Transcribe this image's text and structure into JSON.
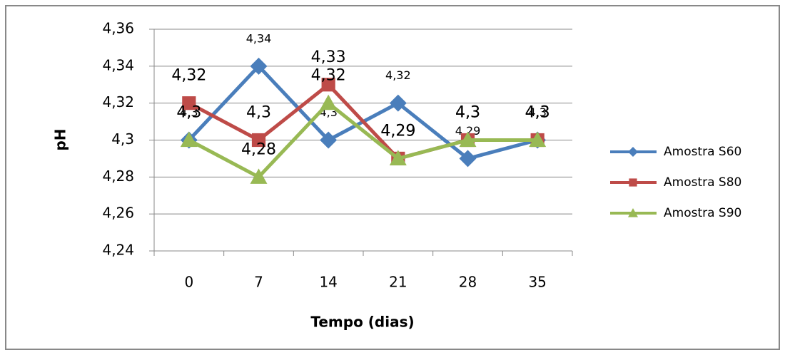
{
  "chart_data": {
    "type": "line",
    "x_label": "Tempo (dias)",
    "y_label": "pH",
    "categories": [
      "0",
      "7",
      "14",
      "21",
      "28",
      "35"
    ],
    "ylim": [
      4.24,
      4.36
    ],
    "yticks": [
      {
        "value": 4.24,
        "label": "4,24"
      },
      {
        "value": 4.26,
        "label": "4,26"
      },
      {
        "value": 4.28,
        "label": "4,28"
      },
      {
        "value": 4.3,
        "label": "4,3"
      },
      {
        "value": 4.32,
        "label": "4,32"
      },
      {
        "value": 4.34,
        "label": "4,34"
      },
      {
        "value": 4.36,
        "label": "4,36"
      }
    ],
    "grid": true,
    "legend": "right",
    "series": [
      {
        "name": "Amostra S60",
        "color": "#4a7ebb",
        "marker": "diamond",
        "values": [
          4.3,
          4.34,
          4.3,
          4.32,
          4.29,
          4.3
        ],
        "value_labels": [
          "4,3",
          "4,34",
          "4,3",
          "4,32",
          "4,29",
          "4,3"
        ]
      },
      {
        "name": "Amostra S80",
        "color": "#be4b48",
        "marker": "square",
        "values": [
          4.32,
          4.3,
          4.33,
          4.29,
          4.3,
          4.3
        ],
        "value_labels": [
          "4,32",
          "4,3",
          "4,33",
          "4,29",
          "4,3",
          "4,3"
        ]
      },
      {
        "name": "Amostra S90",
        "color": "#98b954",
        "marker": "triangle",
        "values": [
          4.3,
          4.28,
          4.32,
          4.29,
          4.3,
          4.3
        ],
        "value_labels": [
          "4,3",
          "4,28",
          "4,32",
          "4,29",
          "4,3",
          "4,3"
        ]
      }
    ]
  }
}
